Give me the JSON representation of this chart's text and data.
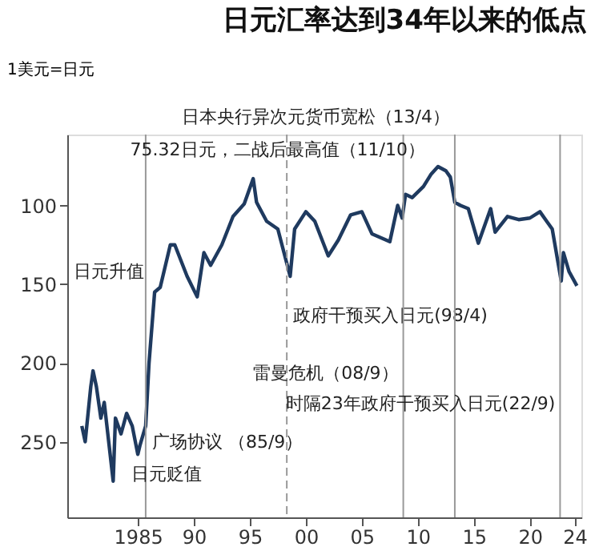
{
  "chart_data": {
    "type": "line",
    "title": "日元汇率达到34年以来的低点",
    "ylabel": "1美元=日元",
    "x": [
      1980.0,
      1980.3,
      1980.8,
      1981.0,
      1981.3,
      1981.7,
      1982.0,
      1982.8,
      1983.0,
      1983.5,
      1984.0,
      1984.5,
      1985.0,
      1985.2,
      1985.7,
      1986.0,
      1986.5,
      1987.0,
      1987.9,
      1988.3,
      1989.4,
      1990.3,
      1990.9,
      1991.5,
      1992.5,
      1993.5,
      1994.5,
      1995.3,
      1995.6,
      1996.5,
      1997.5,
      1998.6,
      1999.0,
      2000.0,
      2000.8,
      2002.0,
      2002.9,
      2004.0,
      2005.0,
      2005.9,
      2007.5,
      2008.2,
      2008.6,
      2008.9,
      2009.5,
      2010.5,
      2011.2,
      2011.8,
      2012.5,
      2012.9,
      2013.3,
      2013.8,
      2014.5,
      2015.4,
      2016.5,
      2016.9,
      2018.0,
      2019.0,
      2020.0,
      2020.9,
      2021.5,
      2022.0,
      2022.8,
      2023.0,
      2023.5,
      2024.2
    ],
    "series": [
      {
        "color": "#1f3a5f",
        "values": [
          240,
          250,
          215,
          205,
          215,
          235,
          225,
          275,
          235,
          245,
          232,
          240,
          258,
          252,
          240,
          200,
          155,
          152,
          125,
          125,
          145,
          158,
          130,
          138,
          125,
          107,
          99,
          83,
          98,
          110,
          115,
          145,
          115,
          104,
          110,
          132,
          122,
          106,
          104,
          118,
          123,
          100,
          108,
          93,
          95,
          88,
          80,
          75.32,
          78,
          82,
          98,
          100,
          102,
          124,
          102,
          117,
          107,
          109,
          108,
          104,
          110,
          115,
          148,
          130,
          142,
          151
        ]
      }
    ],
    "xlim": [
      1978.7,
      2024.6
    ],
    "ylim": [
      298,
      55
    ],
    "xticks": [
      {
        "value": 1985,
        "label": "1985"
      },
      {
        "value": 1990,
        "label": "90"
      },
      {
        "value": 1995,
        "label": "95"
      },
      {
        "value": 2000,
        "label": "00"
      },
      {
        "value": 2005,
        "label": "05"
      },
      {
        "value": 2010,
        "label": "10"
      },
      {
        "value": 2015,
        "label": "15"
      },
      {
        "value": 2020,
        "label": "20"
      },
      {
        "value": 2024,
        "label": "24"
      }
    ],
    "yticks": [
      100,
      150,
      200,
      250
    ],
    "grid": false,
    "line_style": "solid",
    "marker": "none",
    "ref_lines": [
      {
        "axis": "x",
        "value": 1985.7,
        "label": "广场协议 （85/9）",
        "color": "#999999"
      },
      {
        "axis": "x",
        "value": 1998.3,
        "label": "政府干预买入日元(98/4)",
        "color": "#999999",
        "line_style": "dashed"
      },
      {
        "axis": "x",
        "value": 2008.7,
        "label": "雷曼危机（08/9）",
        "color": "#999999"
      },
      {
        "axis": "x",
        "value": 2013.3,
        "label": "日本央行异次元货币宽松（13/4）",
        "color": "#999999"
      },
      {
        "axis": "x",
        "value": 2022.7,
        "label": "时隔23年政府干预买入日元(22/9)",
        "color": "#999999"
      }
    ],
    "annotations": [
      {
        "text": "75.32日元，二战后最高值（11/10）",
        "x": 2011.8,
        "y": 75.32
      },
      "日元升值",
      "日元贬值"
    ]
  }
}
